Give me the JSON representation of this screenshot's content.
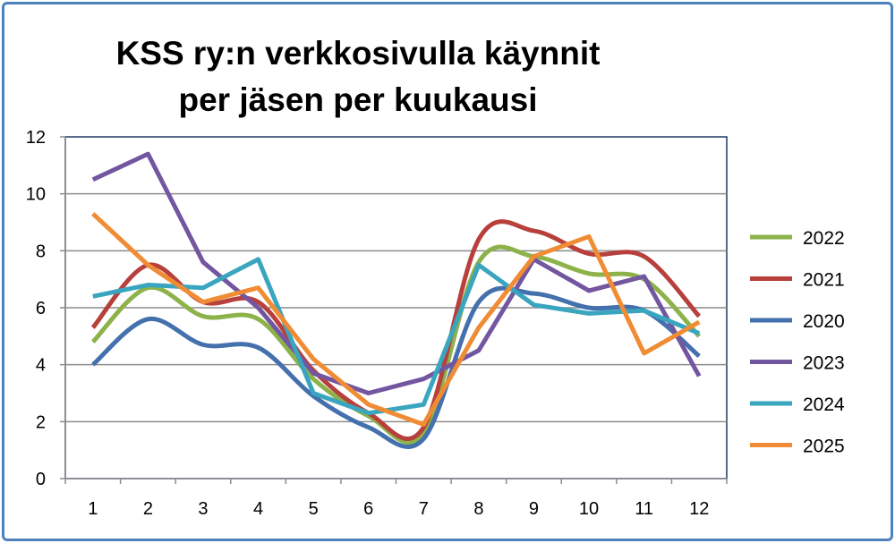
{
  "chart_data": {
    "type": "line",
    "title_lines": [
      "KSS ry:n verkkosivulla käynnit",
      "per jäsen per kuukausi"
    ],
    "xlabel": "",
    "ylabel": "",
    "categories": [
      "1",
      "2",
      "3",
      "4",
      "5",
      "6",
      "7",
      "8",
      "9",
      "10",
      "11",
      "12"
    ],
    "ylim": [
      0,
      12
    ],
    "yticks": [
      0,
      2,
      4,
      6,
      8,
      10,
      12
    ],
    "grid": true,
    "legend": "right",
    "series": [
      {
        "name": "2022",
        "color": "#8db24a",
        "smooth": true,
        "values": [
          4.8,
          6.7,
          5.7,
          5.6,
          3.5,
          2.2,
          1.6,
          7.6,
          7.8,
          7.2,
          7.0,
          5.0
        ]
      },
      {
        "name": "2021",
        "color": "#b7403c",
        "smooth": true,
        "values": [
          5.3,
          7.5,
          6.2,
          6.2,
          3.8,
          2.3,
          1.8,
          8.4,
          8.7,
          7.9,
          7.8,
          5.7
        ]
      },
      {
        "name": "2020",
        "color": "#4470ad",
        "smooth": true,
        "values": [
          4.0,
          5.6,
          4.7,
          4.6,
          2.9,
          1.8,
          1.4,
          6.2,
          6.5,
          6.0,
          5.9,
          4.3
        ]
      },
      {
        "name": "2023",
        "color": "#7356a0",
        "smooth": false,
        "values": [
          10.5,
          11.4,
          7.6,
          6.0,
          3.7,
          3.0,
          3.5,
          4.5,
          7.7,
          6.6,
          7.1,
          3.6
        ]
      },
      {
        "name": "2024",
        "color": "#3aa5bf",
        "smooth": false,
        "values": [
          6.4,
          6.8,
          6.7,
          7.7,
          3.0,
          2.3,
          2.6,
          7.5,
          6.1,
          5.8,
          5.9,
          5.1
        ]
      },
      {
        "name": "2025",
        "color": "#ef8c34",
        "smooth": false,
        "values": [
          9.3,
          7.5,
          6.2,
          6.7,
          4.2,
          2.6,
          1.9,
          5.3,
          7.8,
          8.5,
          4.4,
          5.5
        ]
      }
    ]
  }
}
